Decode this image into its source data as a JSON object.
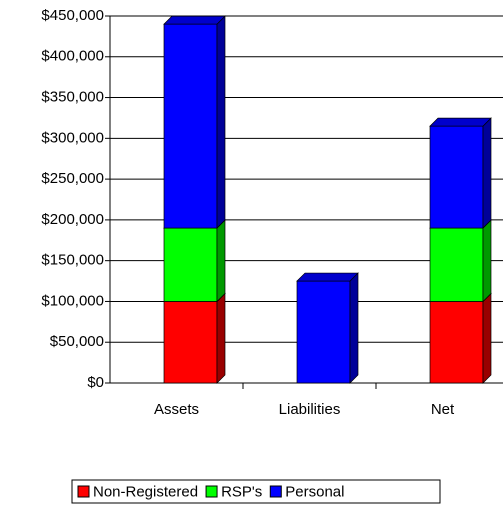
{
  "chart_data": {
    "type": "bar",
    "stacked": true,
    "categories": [
      "Assets",
      "Liabilities",
      "Net"
    ],
    "series": [
      {
        "name": "Non-Registered",
        "color": "#ff0000",
        "values": [
          100000,
          0,
          100000
        ]
      },
      {
        "name": "RSP's",
        "color": "#00ff00",
        "values": [
          90000,
          0,
          90000
        ]
      },
      {
        "name": "Personal",
        "color": "#0000ff",
        "values": [
          250000,
          125000,
          125000
        ]
      }
    ],
    "ylim": [
      0,
      450000
    ],
    "yticks": [
      {
        "value": 0,
        "label": "$0"
      },
      {
        "value": 50000,
        "label": "$50,000"
      },
      {
        "value": 100000,
        "label": "$100,000"
      },
      {
        "value": 150000,
        "label": "$150,000"
      },
      {
        "value": 200000,
        "label": "$200,000"
      },
      {
        "value": 250000,
        "label": "$250,000"
      },
      {
        "value": 300000,
        "label": "$300,000"
      },
      {
        "value": 350000,
        "label": "$350,000"
      },
      {
        "value": 400000,
        "label": "$400,000"
      },
      {
        "value": 450000,
        "label": "$450,000"
      }
    ],
    "grid": true,
    "legend": "bottom"
  }
}
